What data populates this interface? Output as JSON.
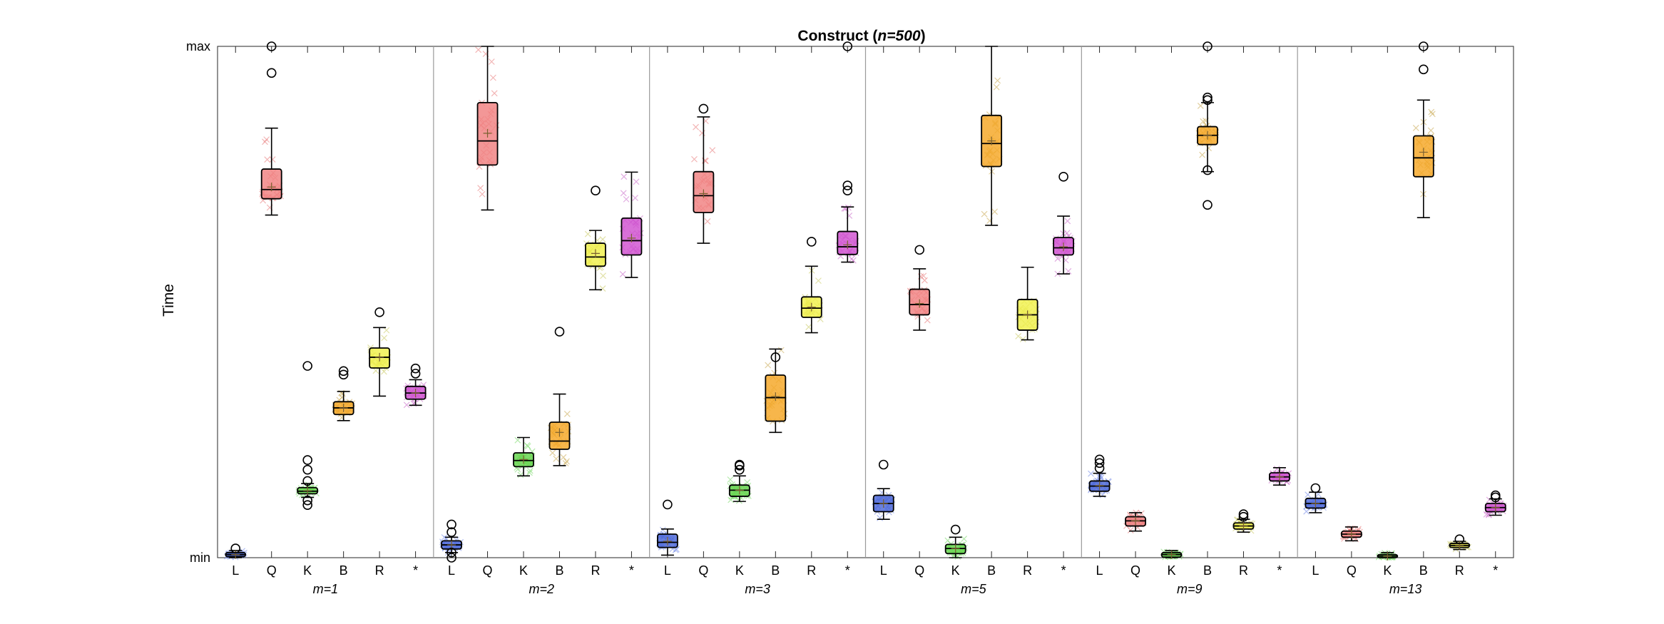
{
  "chart_data": {
    "type": "box",
    "title_main": "Construct (",
    "title_italic": "n=500",
    "title_end": ")",
    "ylabel": "Time",
    "y_tick_labels": [
      "min",
      "max"
    ],
    "ylim": [
      0,
      1
    ],
    "categories": [
      "L",
      "Q",
      "K",
      "B",
      "R",
      "*"
    ],
    "category_colors": [
      "#4a67d8",
      "#f08080",
      "#63d34b",
      "#f5a623",
      "#f0f04a",
      "#d050d0"
    ],
    "marker_colors": [
      "#6f87e8",
      "#e87878",
      "#78d868",
      "#c8a850",
      "#c8c860",
      "#c868c8"
    ],
    "groups": [
      {
        "label": "m=1",
        "boxes": [
          {
            "category": "L",
            "q1": 0.002,
            "median": 0.006,
            "q3": 0.01,
            "whisker_low": 0.0,
            "whisker_high": 0.014,
            "mean": 0.006,
            "outliers": [
              0.018
            ]
          },
          {
            "category": "Q",
            "q1": 0.702,
            "median": 0.72,
            "q3": 0.76,
            "whisker_low": 0.67,
            "whisker_high": 0.84,
            "mean": 0.725,
            "outliers": [
              1.0,
              0.948
            ]
          },
          {
            "category": "K",
            "q1": 0.125,
            "median": 0.13,
            "q3": 0.137,
            "whisker_low": 0.118,
            "whisker_high": 0.145,
            "mean": 0.131,
            "outliers": [
              0.375,
              0.191,
              0.172,
              0.15,
              0.112,
              0.103
            ]
          },
          {
            "category": "B",
            "q1": 0.28,
            "median": 0.293,
            "q3": 0.305,
            "whisker_low": 0.268,
            "whisker_high": 0.325,
            "mean": 0.293,
            "outliers": [
              0.358,
              0.365
            ]
          },
          {
            "category": "R",
            "q1": 0.371,
            "median": 0.392,
            "q3": 0.41,
            "whisker_low": 0.316,
            "whisker_high": 0.45,
            "mean": 0.392,
            "outliers": [
              0.48
            ]
          },
          {
            "category": "*",
            "q1": 0.31,
            "median": 0.322,
            "q3": 0.335,
            "whisker_low": 0.298,
            "whisker_high": 0.348,
            "mean": 0.322,
            "outliers": [
              0.36,
              0.37
            ]
          }
        ]
      },
      {
        "label": "m=2",
        "boxes": [
          {
            "category": "L",
            "q1": 0.017,
            "median": 0.025,
            "q3": 0.033,
            "whisker_low": 0.01,
            "whisker_high": 0.04,
            "mean": 0.025,
            "outliers": [
              0.0,
              0.01,
              0.05,
              0.065
            ]
          },
          {
            "category": "Q",
            "q1": 0.768,
            "median": 0.815,
            "q3": 0.89,
            "whisker_low": 0.68,
            "whisker_high": 1.0,
            "mean": 0.83,
            "outliers": []
          },
          {
            "category": "K",
            "q1": 0.178,
            "median": 0.19,
            "q3": 0.205,
            "whisker_low": 0.16,
            "whisker_high": 0.235,
            "mean": 0.192,
            "outliers": []
          },
          {
            "category": "B",
            "q1": 0.212,
            "median": 0.228,
            "q3": 0.265,
            "whisker_low": 0.18,
            "whisker_high": 0.32,
            "mean": 0.245,
            "outliers": [
              0.442
            ]
          },
          {
            "category": "R",
            "q1": 0.57,
            "median": 0.588,
            "q3": 0.615,
            "whisker_low": 0.524,
            "whisker_high": 0.64,
            "mean": 0.595,
            "outliers": [
              0.718
            ]
          },
          {
            "category": "*",
            "q1": 0.592,
            "median": 0.62,
            "q3": 0.664,
            "whisker_low": 0.548,
            "whisker_high": 0.754,
            "mean": 0.625,
            "outliers": []
          }
        ]
      },
      {
        "label": "m=3",
        "boxes": [
          {
            "category": "L",
            "q1": 0.02,
            "median": 0.03,
            "q3": 0.046,
            "whisker_low": 0.005,
            "whisker_high": 0.056,
            "mean": 0.032,
            "outliers": [
              0.104
            ]
          },
          {
            "category": "Q",
            "q1": 0.675,
            "median": 0.708,
            "q3": 0.755,
            "whisker_low": 0.615,
            "whisker_high": 0.862,
            "mean": 0.712,
            "outliers": [
              0.878
            ]
          },
          {
            "category": "K",
            "q1": 0.12,
            "median": 0.132,
            "q3": 0.142,
            "whisker_low": 0.11,
            "whisker_high": 0.16,
            "mean": 0.132,
            "outliers": [
              0.172,
              0.18,
              0.182
            ]
          },
          {
            "category": "B",
            "q1": 0.267,
            "median": 0.313,
            "q3": 0.357,
            "whisker_low": 0.245,
            "whisker_high": 0.408,
            "mean": 0.315,
            "outliers": [
              0.392
            ]
          },
          {
            "category": "R",
            "q1": 0.47,
            "median": 0.488,
            "q3": 0.51,
            "whisker_low": 0.44,
            "whisker_high": 0.57,
            "mean": 0.49,
            "outliers": [
              0.618
            ]
          },
          {
            "category": "*",
            "q1": 0.593,
            "median": 0.608,
            "q3": 0.638,
            "whisker_low": 0.578,
            "whisker_high": 0.686,
            "mean": 0.612,
            "outliers": [
              0.718,
              0.728,
              1.0
            ]
          }
        ]
      },
      {
        "label": "m=5",
        "boxes": [
          {
            "category": "L",
            "q1": 0.09,
            "median": 0.106,
            "q3": 0.122,
            "whisker_low": 0.075,
            "whisker_high": 0.135,
            "mean": 0.106,
            "outliers": [
              0.182
            ]
          },
          {
            "category": "Q",
            "q1": 0.475,
            "median": 0.495,
            "q3": 0.525,
            "whisker_low": 0.445,
            "whisker_high": 0.565,
            "mean": 0.497,
            "outliers": [
              0.602
            ]
          },
          {
            "category": "K",
            "q1": 0.008,
            "median": 0.018,
            "q3": 0.026,
            "whisker_low": 0.0,
            "whisker_high": 0.04,
            "mean": 0.018,
            "outliers": [
              0.055
            ]
          },
          {
            "category": "B",
            "q1": 0.765,
            "median": 0.81,
            "q3": 0.865,
            "whisker_low": 0.65,
            "whisker_high": 1.0,
            "mean": 0.815,
            "outliers": []
          },
          {
            "category": "R",
            "q1": 0.445,
            "median": 0.475,
            "q3": 0.505,
            "whisker_low": 0.426,
            "whisker_high": 0.568,
            "mean": 0.475,
            "outliers": []
          },
          {
            "category": "*",
            "q1": 0.592,
            "median": 0.606,
            "q3": 0.626,
            "whisker_low": 0.555,
            "whisker_high": 0.668,
            "mean": 0.608,
            "outliers": [
              0.745
            ]
          }
        ]
      },
      {
        "label": "m=9",
        "boxes": [
          {
            "category": "L",
            "q1": 0.13,
            "median": 0.14,
            "q3": 0.15,
            "whisker_low": 0.12,
            "whisker_high": 0.165,
            "mean": 0.141,
            "outliers": [
              0.175,
              0.185,
              0.192
            ]
          },
          {
            "category": "Q",
            "q1": 0.062,
            "median": 0.072,
            "q3": 0.08,
            "whisker_low": 0.052,
            "whisker_high": 0.088,
            "mean": 0.072,
            "outliers": []
          },
          {
            "category": "K",
            "q1": 0.001,
            "median": 0.006,
            "q3": 0.01,
            "whisker_low": 0.0,
            "whisker_high": 0.014,
            "mean": 0.006,
            "outliers": []
          },
          {
            "category": "B",
            "q1": 0.808,
            "median": 0.826,
            "q3": 0.843,
            "whisker_low": 0.755,
            "whisker_high": 0.89,
            "mean": 0.826,
            "outliers": [
              1.0,
              0.9,
              0.895,
              0.758,
              0.69
            ]
          },
          {
            "category": "R",
            "q1": 0.056,
            "median": 0.062,
            "q3": 0.068,
            "whisker_low": 0.05,
            "whisker_high": 0.075,
            "mean": 0.062,
            "outliers": [
              0.08,
              0.085
            ]
          },
          {
            "category": "*",
            "q1": 0.15,
            "median": 0.158,
            "q3": 0.166,
            "whisker_low": 0.142,
            "whisker_high": 0.176,
            "mean": 0.158,
            "outliers": []
          }
        ]
      },
      {
        "label": "m=13",
        "boxes": [
          {
            "category": "L",
            "q1": 0.097,
            "median": 0.106,
            "q3": 0.116,
            "whisker_low": 0.088,
            "whisker_high": 0.128,
            "mean": 0.106,
            "outliers": [
              0.136
            ]
          },
          {
            "category": "Q",
            "q1": 0.04,
            "median": 0.046,
            "q3": 0.052,
            "whisker_low": 0.033,
            "whisker_high": 0.06,
            "mean": 0.046,
            "outliers": []
          },
          {
            "category": "K",
            "q1": 0.0,
            "median": 0.003,
            "q3": 0.006,
            "whisker_low": 0.0,
            "whisker_high": 0.01,
            "mean": 0.003,
            "outliers": []
          },
          {
            "category": "B",
            "q1": 0.745,
            "median": 0.782,
            "q3": 0.825,
            "whisker_low": 0.665,
            "whisker_high": 0.895,
            "mean": 0.793,
            "outliers": [
              1.0,
              0.955
            ]
          },
          {
            "category": "R",
            "q1": 0.02,
            "median": 0.024,
            "q3": 0.028,
            "whisker_low": 0.016,
            "whisker_high": 0.032,
            "mean": 0.024,
            "outliers": [
              0.036
            ]
          },
          {
            "category": "*",
            "q1": 0.09,
            "median": 0.098,
            "q3": 0.106,
            "whisker_low": 0.083,
            "whisker_high": 0.115,
            "mean": 0.098,
            "outliers": [
              0.118,
              0.122
            ]
          }
        ]
      }
    ]
  }
}
